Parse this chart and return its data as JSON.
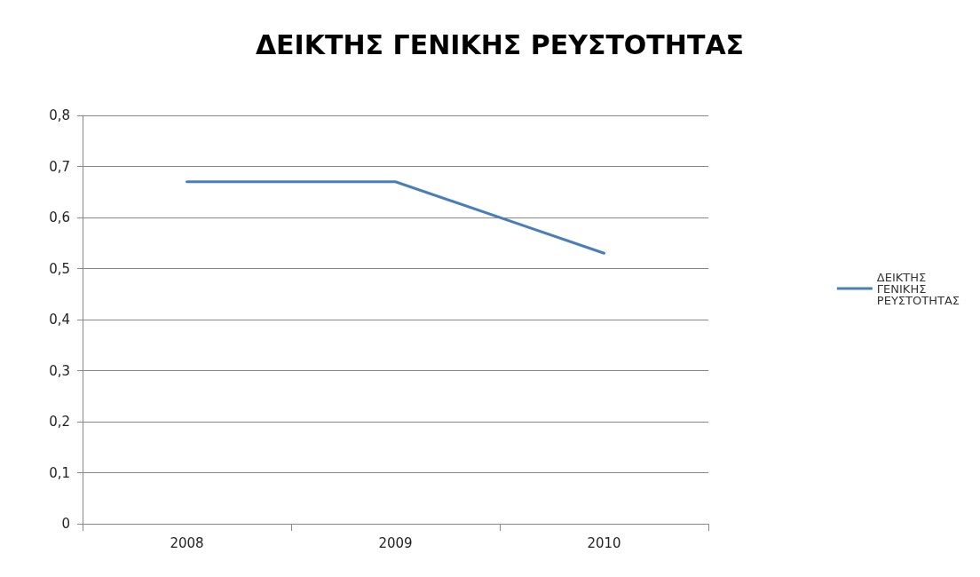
{
  "chart_data": {
    "type": "line",
    "title": "ΔΕΙΚΤΗΣ ΓΕΝΙΚΗΣ ΡΕΥΣΤΟΤΗΤΑΣ",
    "categories": [
      "2008",
      "2009",
      "2010"
    ],
    "series": [
      {
        "name": "ΔΕΙΚΤΗΣ ΓΕΝΙΚΗΣ ΡΕΥΣΤΟΤΗΤΑΣ",
        "color": "#4a7ebb",
        "values": [
          0.67,
          0.67,
          0.53
        ]
      }
    ],
    "ylim": [
      0,
      0.8
    ],
    "yticks": [
      {
        "value": 0,
        "label": "0"
      },
      {
        "value": 0.1,
        "label": "0,1"
      },
      {
        "value": 0.2,
        "label": "0,2"
      },
      {
        "value": 0.3,
        "label": "0,3"
      },
      {
        "value": 0.4,
        "label": "0,4"
      },
      {
        "value": 0.5,
        "label": "0,5"
      },
      {
        "value": 0.6,
        "label": "0,6"
      },
      {
        "value": 0.7,
        "label": "0,7"
      },
      {
        "value": 0.8,
        "label": "0,8"
      }
    ],
    "grid": "y",
    "legend": "right",
    "marker": "none",
    "line_style": "solid"
  }
}
